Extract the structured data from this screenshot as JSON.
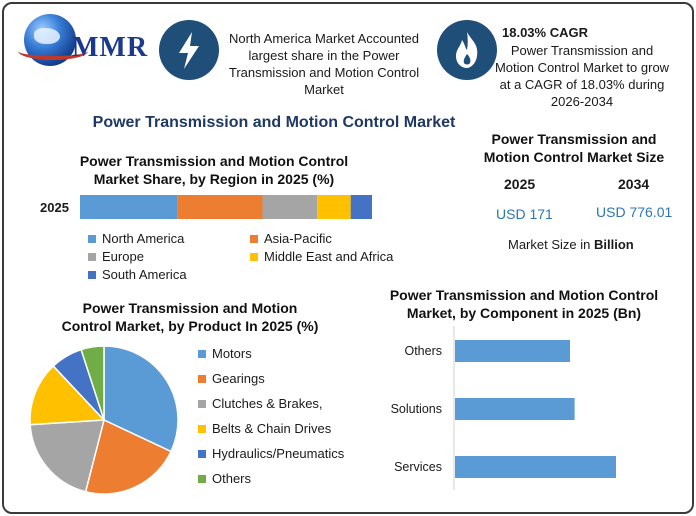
{
  "logo": {
    "text": "MMR"
  },
  "highlights": [
    {
      "icon": "lightning-icon",
      "text_lines": [
        "North America Market Accounted",
        "largest share in the Power",
        "Transmission and Motion Control",
        "Market"
      ]
    },
    {
      "icon": "flame-icon",
      "heading": "18.03% CAGR",
      "text_lines": [
        "Power Transmission and",
        "Motion Control Market to grow",
        "at a CAGR of 18.03% during",
        "2026-2034"
      ]
    }
  ],
  "main_title": "Power Transmission and Motion Control Market",
  "market_size": {
    "title_lines": [
      "Power Transmission and",
      "Motion Control Market Size"
    ],
    "years": [
      "2025",
      "2034"
    ],
    "values": [
      "USD 171",
      "USD 776.01"
    ],
    "note_prefix": "Market Size in ",
    "note_bold": "Billion"
  },
  "colors": {
    "blue": "#5b9bd5",
    "orange": "#ed7d31",
    "gray": "#a5a5a5",
    "yellow": "#ffc000",
    "darkblue": "#4472c4",
    "green": "#70ad47",
    "navy": "#1f4e79"
  },
  "chart_data": [
    {
      "type": "bar",
      "orientation": "horizontal-stacked",
      "title": "Power Transmission and Motion Control Market Share, by Region in 2025 (%)",
      "title_lines": [
        "Power Transmission and Motion Control",
        "Market Share, by Region in 2025 (%)"
      ],
      "categories": [
        "2025"
      ],
      "series": [
        {
          "name": "North America",
          "values": [
            32
          ],
          "color": "#5b9bd5"
        },
        {
          "name": "Asia-Pacific",
          "values": [
            28
          ],
          "color": "#ed7d31"
        },
        {
          "name": "Europe",
          "values": [
            18
          ],
          "color": "#a5a5a5"
        },
        {
          "name": "Middle East and Africa",
          "values": [
            11
          ],
          "color": "#ffc000"
        },
        {
          "name": "South America",
          "values": [
            7
          ],
          "color": "#4472c4"
        }
      ],
      "xlim": [
        0,
        96
      ],
      "legend": "bottom"
    },
    {
      "type": "pie",
      "title": "Power Transmission and Motion Control Market, by Product In 2025 (%)",
      "title_lines": [
        "Power Transmission and Motion",
        "Control Market, by Product In 2025 (%)"
      ],
      "labels": [
        "Motors",
        "Gearings",
        "Clutches & Brakes,",
        "Belts & Chain Drives",
        "Hydraulics/Pneumatics",
        "Others"
      ],
      "values": [
        32,
        22,
        20,
        14,
        7,
        5
      ],
      "colors": [
        "#5b9bd5",
        "#ed7d31",
        "#a5a5a5",
        "#ffc000",
        "#4472c4",
        "#70ad47"
      ],
      "legend": "right"
    },
    {
      "type": "bar",
      "orientation": "horizontal",
      "title": "Power Transmission and Motion Control Market, by Component in 2025 (Bn)",
      "title_lines": [
        "Power Transmission and Motion Control",
        "Market, by Component in 2025 (Bn)"
      ],
      "categories": [
        "Others",
        "Solutions",
        "Services"
      ],
      "values": [
        50,
        52,
        70
      ],
      "xlim": [
        0,
        100
      ],
      "color": "#5b9bd5",
      "grid": false
    }
  ]
}
